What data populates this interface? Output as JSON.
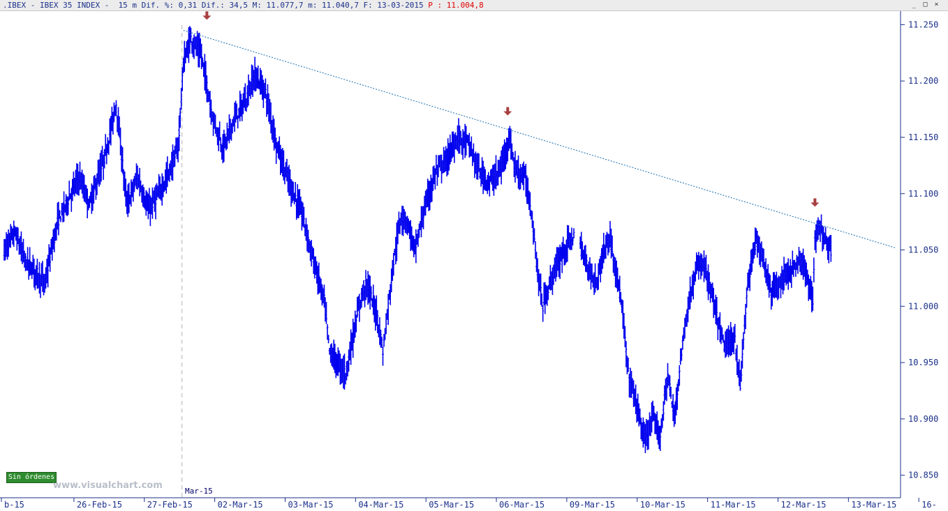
{
  "header": {
    "text": ".IBEX - IBEX 35 INDEX -  15 m Dif. %: 0,31 Dif.: 34,5 M: 11.077,7 m: 11.040,7 F: 13-03-2015 ",
    "price": "P : 11.004,8"
  },
  "window_controls": {
    "minimize": "_",
    "maximize": "□",
    "close": "×"
  },
  "status_badge": "Sin órdenes",
  "watermark": "www.visualchart.com",
  "session_label": "Mar-15",
  "colors": {
    "bars": "#0000ee",
    "trendline": "#2a7ab8",
    "arrows": "#a84040",
    "axis": "#1a2f8a",
    "session_line": "#b4b4b4"
  },
  "chart_data": {
    "type": "ohlc",
    "title": ".IBEX - IBEX 35 INDEX - 15 m",
    "ylim": [
      10830,
      11262
    ],
    "y_ticks": [
      10850,
      10900,
      10950,
      11000,
      11050,
      11100,
      11150,
      11200,
      11250
    ],
    "y_tick_labels": [
      "10.850",
      "10.900",
      "10.950",
      "11.000",
      "11.050",
      "11.100",
      "11.150",
      "11.200",
      "11.250"
    ],
    "x_tick_labels": [
      "b-15",
      "26-Feb-15",
      "27-Feb-15",
      "02-Mar-15",
      "03-Mar-15",
      "04-Mar-15",
      "05-Mar-15",
      "06-Mar-15",
      "09-Mar-15",
      "10-Mar-15",
      "11-Mar-15",
      "12-Mar-15",
      "13-Mar-15",
      "16-"
    ],
    "x_tick_slots": [
      0,
      68,
      134,
      200,
      266,
      332,
      398,
      464,
      530,
      596,
      662,
      728,
      794,
      860
    ],
    "total_slots": 835,
    "trendline": {
      "from": {
        "slot": 168,
        "value": 11245
      },
      "to": {
        "slot": 835,
        "value": 11052
      }
    },
    "markers": [
      {
        "slot": 190,
        "value": 11242,
        "type": "resistance-arrow"
      },
      {
        "slot": 472,
        "value": 11157,
        "type": "resistance-arrow"
      },
      {
        "slot": 760,
        "value": 11076,
        "type": "resistance-arrow"
      }
    ],
    "series": [
      {
        "anchors": [
          [
            0,
            11050
          ],
          [
            10,
            11065
          ],
          [
            20,
            11040
          ],
          [
            30,
            11030
          ],
          [
            38,
            11020
          ],
          [
            50,
            11075
          ],
          [
            60,
            11095
          ],
          [
            70,
            11115
          ],
          [
            80,
            11090
          ],
          [
            95,
            11135
          ],
          [
            105,
            11180
          ],
          [
            115,
            11090
          ],
          [
            125,
            11115
          ],
          [
            135,
            11085
          ],
          [
            145,
            11100
          ],
          [
            155,
            11120
          ],
          [
            163,
            11140
          ],
          [
            168,
            11215
          ],
          [
            175,
            11238
          ],
          [
            185,
            11222
          ],
          [
            195,
            11170
          ],
          [
            205,
            11140
          ],
          [
            215,
            11165
          ],
          [
            225,
            11180
          ],
          [
            235,
            11205
          ],
          [
            245,
            11190
          ],
          [
            255,
            11145
          ],
          [
            265,
            11115
          ],
          [
            280,
            11080
          ],
          [
            290,
            11040
          ],
          [
            300,
            11005
          ],
          [
            305,
            10960
          ],
          [
            312,
            10950
          ],
          [
            320,
            10940
          ],
          [
            335,
            11010
          ],
          [
            340,
            11020
          ],
          [
            350,
            10990
          ],
          [
            355,
            10960
          ],
          [
            365,
            11040
          ],
          [
            372,
            11080
          ],
          [
            378,
            11075
          ],
          [
            385,
            11050
          ],
          [
            395,
            11090
          ],
          [
            405,
            11120
          ],
          [
            415,
            11130
          ],
          [
            425,
            11150
          ],
          [
            435,
            11145
          ],
          [
            445,
            11120
          ],
          [
            455,
            11110
          ],
          [
            465,
            11120
          ],
          [
            473,
            11150
          ],
          [
            480,
            11120
          ],
          [
            488,
            11115
          ],
          [
            495,
            11080
          ],
          [
            500,
            11030
          ],
          [
            505,
            11000
          ],
          [
            515,
            11030
          ],
          [
            525,
            11050
          ],
          [
            535,
            11065
          ],
          [
            545,
            11040
          ],
          [
            555,
            11020
          ],
          [
            562,
            11050
          ],
          [
            568,
            11060
          ],
          [
            575,
            11025
          ],
          [
            580,
            10990
          ],
          [
            585,
            10940
          ],
          [
            595,
            10905
          ],
          [
            600,
            10880
          ],
          [
            608,
            10900
          ],
          [
            615,
            10885
          ],
          [
            622,
            10940
          ],
          [
            628,
            10900
          ],
          [
            635,
            10960
          ],
          [
            640,
            10995
          ],
          [
            648,
            11030
          ],
          [
            655,
            11040
          ],
          [
            662,
            11015
          ],
          [
            668,
            10990
          ],
          [
            675,
            10965
          ],
          [
            685,
            10970
          ],
          [
            690,
            10930
          ],
          [
            697,
            11020
          ],
          [
            705,
            11060
          ],
          [
            712,
            11040
          ],
          [
            720,
            11010
          ],
          [
            725,
            11020
          ],
          [
            735,
            11030
          ],
          [
            745,
            11040
          ],
          [
            752,
            11030
          ],
          [
            758,
            11005
          ],
          [
            760,
            11060
          ],
          [
            763,
            11070
          ],
          [
            770,
            11060
          ],
          [
            775,
            11050
          ]
        ],
        "gaps": [
          [
            535,
            539
          ],
          [
            776,
            835
          ]
        ]
      }
    ]
  }
}
